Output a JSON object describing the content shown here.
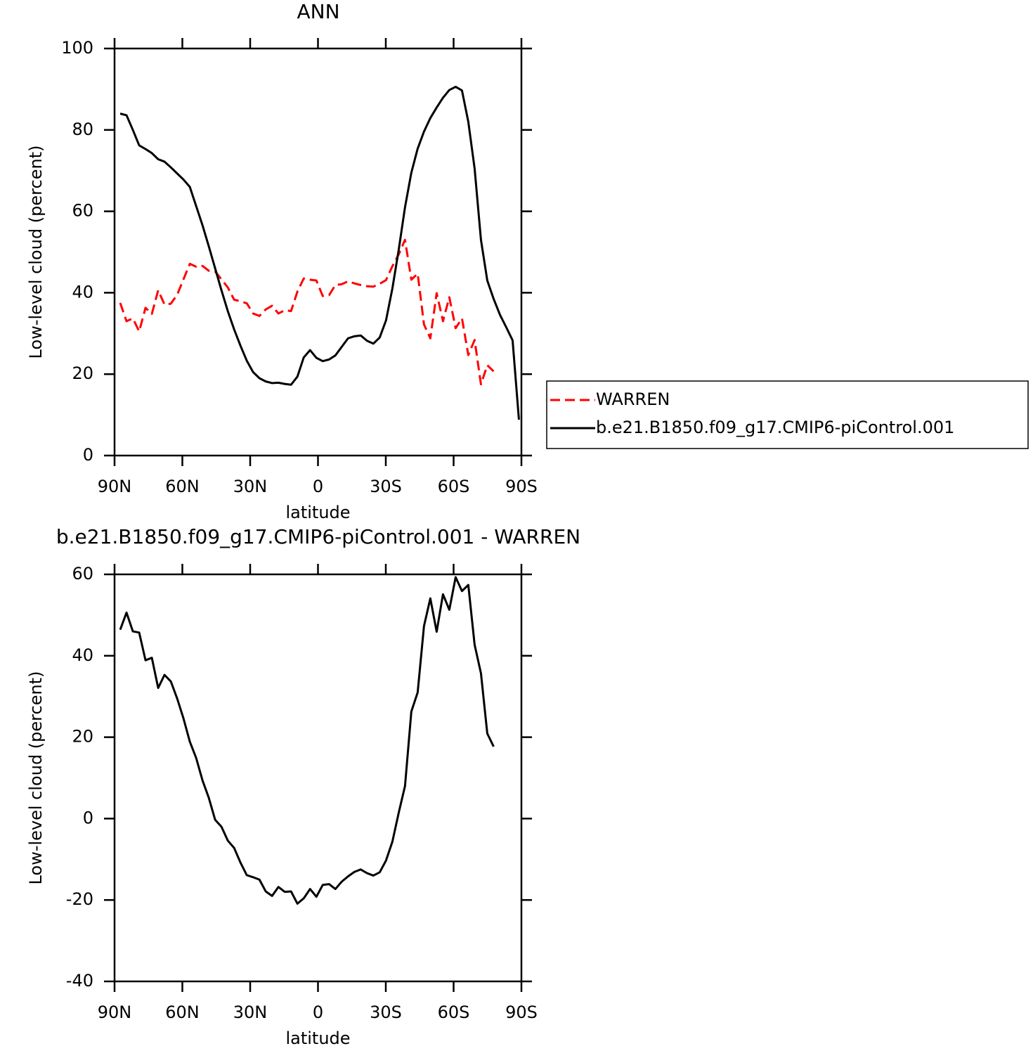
{
  "chart_data": [
    {
      "type": "line",
      "title": "ANN",
      "x_label": "latitude",
      "y_label": "Low-level cloud (percent)",
      "xlim": [
        90,
        -90
      ],
      "xticks": [
        {
          "value": 90,
          "label": "90N"
        },
        {
          "value": 60,
          "label": "60N"
        },
        {
          "value": 30,
          "label": "30N"
        },
        0,
        {
          "value": -30,
          "label": "30S"
        },
        {
          "value": -60,
          "label": "60S"
        },
        {
          "value": -90,
          "label": "90S"
        }
      ],
      "ylim": [
        0,
        100
      ],
      "yticks": [
        0,
        20,
        40,
        60,
        80,
        100
      ],
      "legend": "right",
      "x": [
        87.5,
        84.7,
        81.9,
        79.1,
        76.3,
        73.5,
        70.7,
        67.9,
        65.1,
        62.3,
        59.5,
        56.7,
        53.9,
        51.1,
        48.3,
        45.5,
        42.7,
        39.9,
        37.1,
        34.3,
        31.5,
        28.7,
        25.9,
        23.1,
        20.3,
        17.5,
        14.7,
        11.9,
        9.1,
        6.3,
        3.5,
        0.7,
        -2.1,
        -4.9,
        -7.7,
        -10.5,
        -13.3,
        -16.1,
        -18.9,
        -21.7,
        -24.5,
        -27.3,
        -30.1,
        -32.9,
        -35.7,
        -38.5,
        -41.3,
        -44.1,
        -46.9,
        -49.7,
        -52.5,
        -55.3,
        -58.1,
        -60.9,
        -63.7,
        -66.5,
        -69.3,
        -72.1,
        -74.9,
        -77.7,
        -80.5,
        -83.3,
        -86.1,
        -88.9
      ],
      "series": [
        {
          "name": "WARREN",
          "color": "#ff0000",
          "style": "dashed",
          "values": [
            37.5,
            33,
            33.7,
            30.5,
            36.3,
            34.8,
            40.6,
            37.1,
            37.3,
            39.5,
            43.3,
            47.1,
            46.4,
            46.6,
            45.4,
            45.2,
            43.3,
            41.3,
            38.3,
            37.9,
            37.4,
            34.9,
            34.3,
            35.9,
            36.8,
            34.9,
            35.7,
            35.5,
            40.3,
            43.5,
            43.2,
            43,
            39.2,
            39.4,
            41.9,
            42.1,
            42.8,
            42.3,
            41.9,
            41.6,
            41.5,
            42.2,
            43.1,
            46.5,
            49.4,
            53,
            43.2,
            44.7,
            32.2,
            28.8,
            39.9,
            33,
            38.9,
            31.3,
            33.7,
            24.7,
            28.4,
            17.5,
            22.2,
            20.7,
            null,
            null,
            null,
            null
          ]
        },
        {
          "name": "b.e21.B1850.f09_g17.CMIP6-piControl.001",
          "color": "#000000",
          "style": "solid",
          "values": [
            84,
            83.6,
            80,
            76.2,
            75.3,
            74.3,
            72.8,
            72.2,
            70.8,
            69.3,
            67.8,
            66,
            61.3,
            56.6,
            51.4,
            46,
            40.6,
            35.5,
            31,
            27,
            23.3,
            20.5,
            19,
            18.2,
            17.8,
            17.9,
            17.6,
            17.4,
            19.4,
            24.1,
            25.9,
            24,
            23.2,
            23.6,
            24.6,
            26.7,
            28.8,
            29.3,
            29.5,
            28.2,
            27.5,
            29,
            33.2,
            41,
            50.5,
            61,
            69.5,
            75.4,
            79.6,
            82.9,
            85.5,
            87.9,
            89.8,
            90.6,
            89.7,
            82,
            70.5,
            53,
            43,
            38.5,
            34.6,
            31.5,
            28.3,
            8.8
          ]
        }
      ]
    },
    {
      "type": "line",
      "title": "b.e21.B1850.f09_g17.CMIP6-piControl.001  -  WARREN",
      "x_label": "latitude",
      "y_label": "Low-level cloud (percent)",
      "xlim": [
        90,
        -90
      ],
      "xticks": [
        {
          "value": 90,
          "label": "90N"
        },
        {
          "value": 60,
          "label": "60N"
        },
        {
          "value": 30,
          "label": "30N"
        },
        0,
        {
          "value": -30,
          "label": "30S"
        },
        {
          "value": -60,
          "label": "60S"
        },
        {
          "value": -90,
          "label": "90S"
        }
      ],
      "ylim": [
        -40,
        60
      ],
      "yticks": [
        -40,
        -20,
        0,
        20,
        40,
        60
      ],
      "x": [
        87.5,
        84.7,
        81.9,
        79.1,
        76.3,
        73.5,
        70.7,
        67.9,
        65.1,
        62.3,
        59.5,
        56.7,
        53.9,
        51.1,
        48.3,
        45.5,
        42.7,
        39.9,
        37.1,
        34.3,
        31.5,
        28.7,
        25.9,
        23.1,
        20.3,
        17.5,
        14.7,
        11.9,
        9.1,
        6.3,
        3.5,
        0.7,
        -2.1,
        -4.9,
        -7.7,
        -10.5,
        -13.3,
        -16.1,
        -18.9,
        -21.7,
        -24.5,
        -27.3,
        -30.1,
        -32.9,
        -35.7,
        -38.5,
        -41.3,
        -44.1,
        -46.9,
        -49.7,
        -52.5,
        -55.3,
        -58.1,
        -60.9,
        -63.7,
        -66.5,
        -69.3,
        -72.1,
        -74.9,
        -77.7,
        -80.5,
        -83.3,
        -86.1,
        -88.9
      ],
      "color": "#000000",
      "values": [
        46.4,
        50.6,
        46,
        45.7,
        38.9,
        39.5,
        32.1,
        35.3,
        33.7,
        29.5,
        24.6,
        18.9,
        14.9,
        9.4,
        5.1,
        -0.3,
        -2,
        -5.4,
        -7.2,
        -10.8,
        -13.9,
        -14.4,
        -15,
        -17.9,
        -19,
        -16.8,
        -18,
        -17.9,
        -20.9,
        -19.6,
        -17.3,
        -19.2,
        -16.3,
        -16.1,
        -17.3,
        -15.5,
        -14.2,
        -13.1,
        -12.5,
        -13.4,
        -14,
        -13.2,
        -10.3,
        -5.7,
        1.4,
        8,
        26.3,
        31,
        47.3,
        54.1,
        45.9,
        55.1,
        51.3,
        59.3,
        55.9,
        57.4,
        42.7,
        35.7,
        20.9,
        17.7,
        null,
        null,
        null,
        null
      ]
    }
  ]
}
